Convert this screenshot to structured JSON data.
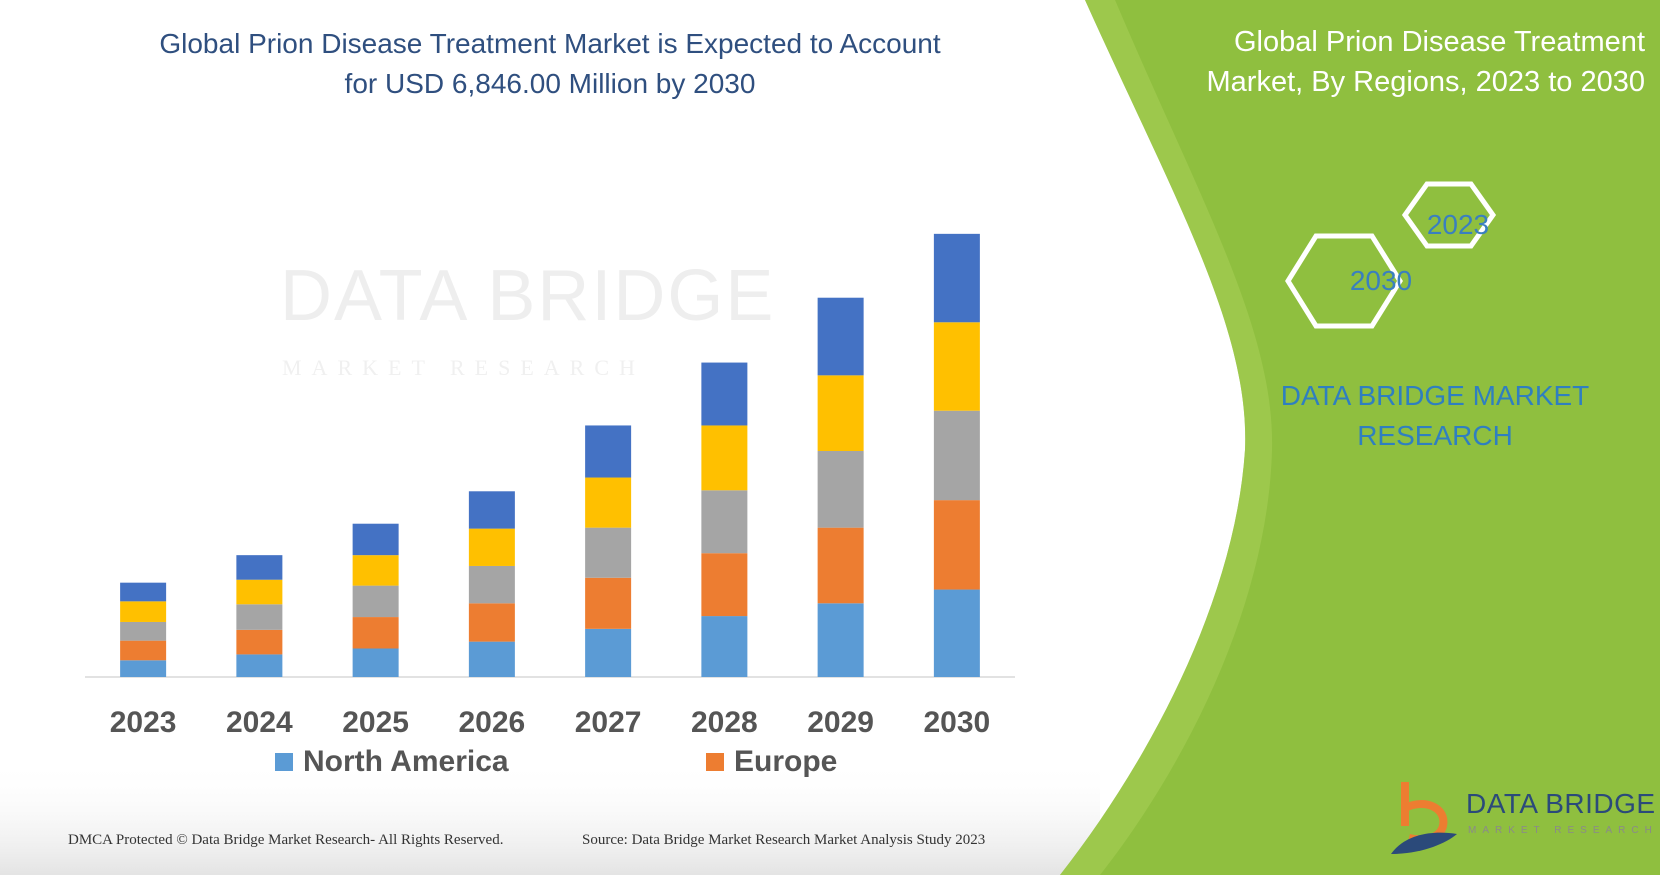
{
  "header": {
    "title_line1": "Global Prion Disease Treatment Market is Expected to Account",
    "title_line2": "for USD 6,846.00 Million by 2030"
  },
  "side_panel": {
    "title_line1": "Global Prion Disease Treatment",
    "title_line2": "Market, By Regions, 2023 to 2030",
    "hex_year_small": "2023",
    "hex_year_large": "2030",
    "brand_line1": "DATA BRIDGE MARKET",
    "brand_line2": "RESEARCH"
  },
  "logo": {
    "name": "DATA BRIDGE",
    "tagline": "MARKET RESEARCH"
  },
  "watermark": {
    "name": "DATA BRIDGE",
    "tagline": "MARKET RESEARCH"
  },
  "footer": {
    "copyright": "DMCA Protected © Data Bridge Market Research-  All Rights Reserved.",
    "source": "Source:  Data Bridge Market Research  Market Analysis Study 2023"
  },
  "colors": {
    "north_america": "#5b9bd5",
    "europe": "#ed7d31",
    "segment3": "#a5a5a5",
    "segment4": "#ffc000",
    "segment5": "#4472c4",
    "green_panel": "#8fbf3f",
    "title_blue": "#2f4f7f"
  },
  "chart_data": {
    "type": "bar",
    "stacked": true,
    "title": "Global Prion Disease Treatment Market is Expected to Account for USD 6,846.00 Million by 2030",
    "categories": [
      "2023",
      "2024",
      "2025",
      "2026",
      "2027",
      "2028",
      "2029",
      "2030"
    ],
    "series": [
      {
        "name": "North America",
        "values": [
          17,
          23,
          29,
          36,
          49,
          62,
          75,
          89
        ]
      },
      {
        "name": "Europe",
        "values": [
          20,
          25,
          32,
          39,
          52,
          64,
          77,
          91
        ]
      },
      {
        "name": "",
        "values": [
          19,
          26,
          32,
          38,
          51,
          64,
          78,
          91
        ]
      },
      {
        "name": "",
        "values": [
          21,
          25,
          31,
          38,
          51,
          66,
          77,
          90
        ]
      },
      {
        "name": "",
        "values": [
          19,
          25,
          32,
          38,
          53,
          64,
          79,
          90
        ]
      }
    ],
    "legend": [
      "North America",
      "Europe"
    ],
    "xlabel": "",
    "ylabel": "",
    "ylim": [
      0,
      460
    ],
    "grid": false
  }
}
